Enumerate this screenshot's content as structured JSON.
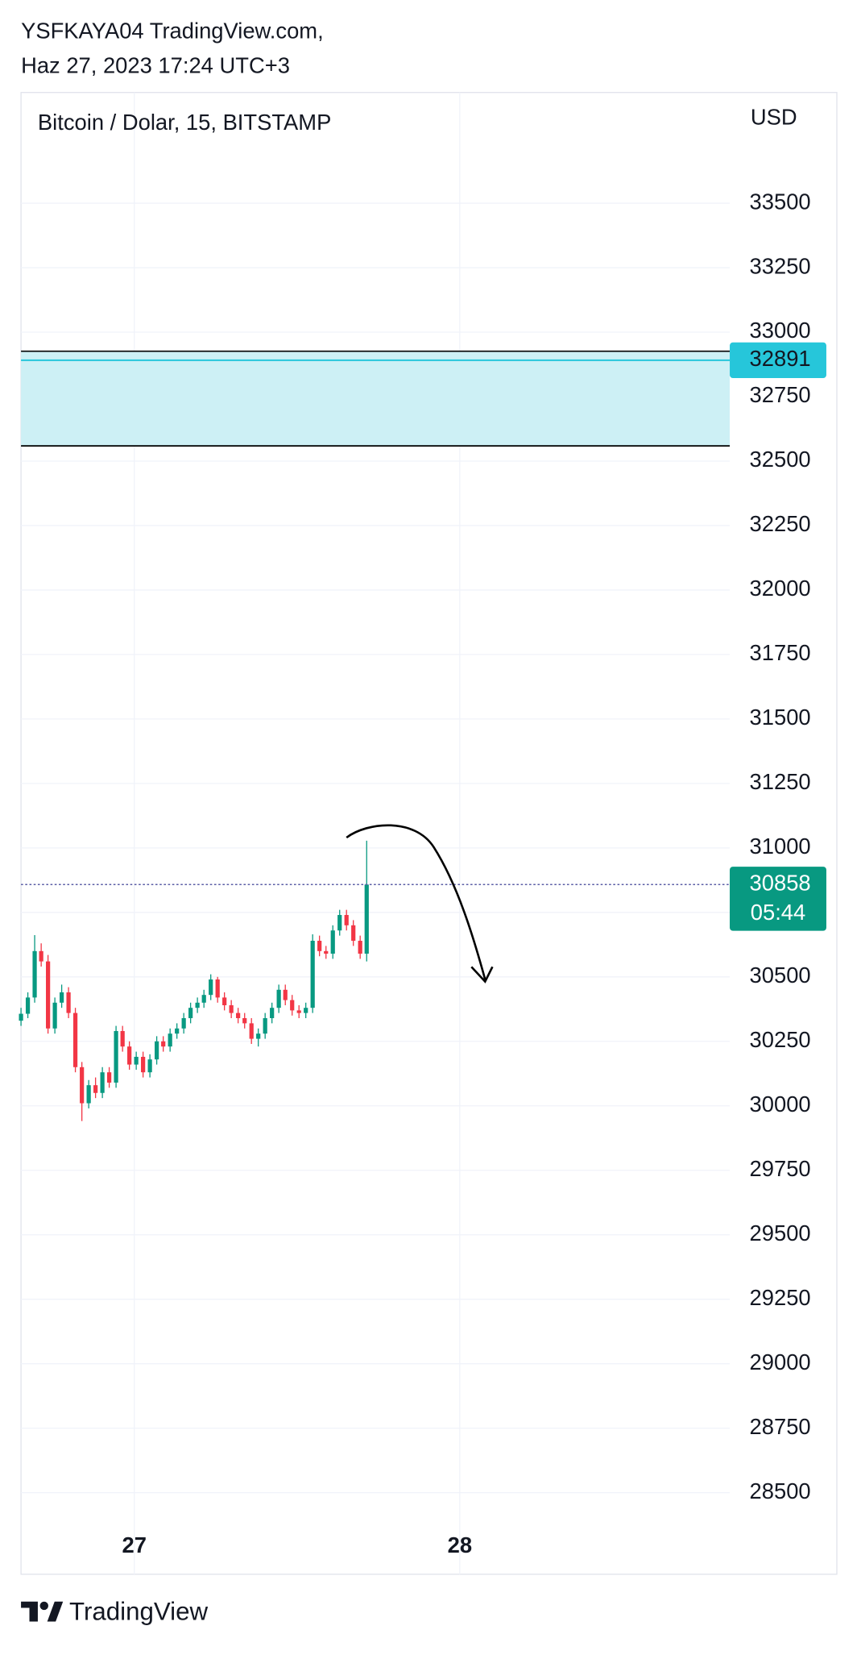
{
  "header": {
    "author": "YSFKAYA04 TradingView.com,",
    "timestamp": "Haz 27, 2023 17:24 UTC+3"
  },
  "footer": {
    "brand": "TradingView"
  },
  "chart_data": {
    "type": "candlestick",
    "title": "Bitcoin / Dolar, 15, BITSTAMP",
    "currency": "USD",
    "xlim": [
      26.652,
      28.829
    ],
    "xticks": [
      27,
      28
    ],
    "ylim": [
      28420,
      33750
    ],
    "yticks": [
      28500,
      28750,
      29000,
      29250,
      29500,
      29750,
      30000,
      30250,
      30500,
      30750,
      31000,
      31250,
      31500,
      31750,
      32000,
      32250,
      32500,
      32750,
      33000,
      33250,
      33500
    ],
    "grid": true,
    "up_color": "#089981",
    "down_color": "#f23645",
    "x": [
      26.652,
      26.673,
      26.694,
      26.714,
      26.735,
      26.756,
      26.777,
      26.798,
      26.819,
      26.839,
      26.86,
      26.881,
      26.902,
      26.923,
      26.944,
      26.964,
      26.985,
      27.006,
      27.027,
      27.048,
      27.069,
      27.089,
      27.11,
      27.131,
      27.152,
      27.173,
      27.194,
      27.214,
      27.235,
      27.256,
      27.277,
      27.298,
      27.319,
      27.339,
      27.36,
      27.381,
      27.402,
      27.423,
      27.444,
      27.464,
      27.485,
      27.506,
      27.527,
      27.548,
      27.569,
      27.589,
      27.61,
      27.631,
      27.652,
      27.673,
      27.694,
      27.714
    ],
    "open": [
      30330,
      30357,
      30420,
      30600,
      30560,
      30300,
      30400,
      30440,
      30360,
      30150,
      30010,
      30080,
      30050,
      30130,
      30090,
      30290,
      30230,
      30160,
      30190,
      30130,
      30180,
      30250,
      30230,
      30280,
      30300,
      30340,
      30380,
      30400,
      30430,
      30490,
      30420,
      30390,
      30360,
      30340,
      30320,
      30260,
      30280,
      30340,
      30380,
      30450,
      30410,
      30370,
      30360,
      30380,
      30640,
      30600,
      30590,
      30680,
      30740,
      30700,
      30640,
      30590
    ],
    "high": [
      30380,
      30440,
      30662,
      30630,
      30585,
      30420,
      30470,
      30460,
      30380,
      30170,
      30100,
      30110,
      30150,
      30150,
      30310,
      30310,
      30250,
      30210,
      30210,
      30200,
      30270,
      30270,
      30300,
      30320,
      30360,
      30400,
      30420,
      30450,
      30510,
      30500,
      30440,
      30410,
      30380,
      30360,
      30340,
      30300,
      30360,
      30400,
      30470,
      30470,
      30430,
      30390,
      30400,
      30665,
      30660,
      30620,
      30700,
      30760,
      30760,
      30720,
      30660,
      31028
    ],
    "low": [
      30310,
      30340,
      30400,
      30540,
      30280,
      30280,
      30380,
      30340,
      30130,
      29941,
      29990,
      30030,
      30030,
      30070,
      30070,
      30210,
      30140,
      30140,
      30110,
      30110,
      30160,
      30210,
      30210,
      30260,
      30280,
      30320,
      30360,
      30380,
      30410,
      30400,
      30370,
      30340,
      30320,
      30300,
      30240,
      30230,
      30260,
      30320,
      30360,
      30390,
      30350,
      30340,
      30340,
      30360,
      30580,
      30570,
      30570,
      30660,
      30680,
      30620,
      30570,
      30560
    ],
    "close": [
      30357,
      30420,
      30600,
      30560,
      30300,
      30400,
      30440,
      30360,
      30150,
      30010,
      30080,
      30050,
      30130,
      30090,
      30290,
      30230,
      30160,
      30190,
      30130,
      30180,
      30250,
      30230,
      30280,
      30300,
      30340,
      30380,
      30400,
      30430,
      30490,
      30420,
      30390,
      30360,
      30340,
      30320,
      30260,
      30280,
      30340,
      30380,
      30450,
      30410,
      30370,
      30360,
      30380,
      30640,
      30600,
      30590,
      30680,
      30740,
      30700,
      30640,
      30590,
      30858
    ],
    "zone": {
      "top": 32926,
      "bottom": 32559,
      "color": "#cdf0f5"
    },
    "level": {
      "value": 32891,
      "color": "#26c6da"
    },
    "last_price": 30858,
    "countdown": "05:44"
  }
}
